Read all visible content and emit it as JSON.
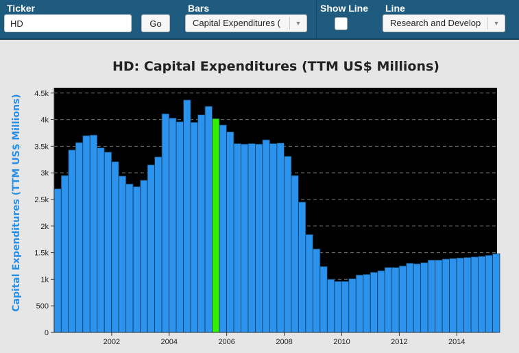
{
  "toolbar": {
    "ticker_label": "Ticker",
    "ticker_value": "HD",
    "go_label": "Go",
    "bars_label": "Bars",
    "bars_value": "Capital Expenditures (",
    "show_line_label": "Show Line",
    "show_line_checked": false,
    "line_label": "Line",
    "line_value": "Research and Develop"
  },
  "colors": {
    "toolbar_bg": "#1f5b7f",
    "bar": "#2b93ee",
    "highlight_bar": "#33ee00",
    "plot_bg": "#000000",
    "ylabel": "#2a8fe6"
  },
  "chart_data": {
    "type": "bar",
    "title": "HD: Capital Expenditures (TTM US$ Millions)",
    "ylabel": "Capital Expenditures (TTM US$ Millions)",
    "xlabel": "",
    "ylim": [
      0,
      4600
    ],
    "xlim": [
      2000.0,
      2015.4
    ],
    "grid": true,
    "y_ticks": [
      0,
      500,
      1000,
      1500,
      2000,
      2500,
      3000,
      3500,
      4000,
      4500
    ],
    "y_tick_labels": [
      "0",
      "500",
      "1k",
      "1.5k",
      "2k",
      "2.5k",
      "3k",
      "3.5k",
      "4k",
      "4.5k"
    ],
    "x_ticks": [
      2002,
      2004,
      2006,
      2008,
      2010,
      2012,
      2014
    ],
    "x_tick_labels": [
      "2002",
      "2004",
      "2006",
      "2008",
      "2010",
      "2012",
      "2014"
    ],
    "highlight_index": 22,
    "x": [
      2000.12,
      2000.37,
      2000.62,
      2000.87,
      2001.12,
      2001.37,
      2001.62,
      2001.87,
      2002.12,
      2002.37,
      2002.62,
      2002.87,
      2003.12,
      2003.37,
      2003.62,
      2003.87,
      2004.12,
      2004.37,
      2004.62,
      2004.87,
      2005.12,
      2005.37,
      2005.62,
      2005.87,
      2006.12,
      2006.37,
      2006.62,
      2006.87,
      2007.12,
      2007.37,
      2007.62,
      2007.87,
      2008.12,
      2008.37,
      2008.62,
      2008.87,
      2009.12,
      2009.37,
      2009.62,
      2009.87,
      2010.12,
      2010.37,
      2010.62,
      2010.87,
      2011.12,
      2011.37,
      2011.62,
      2011.87,
      2012.12,
      2012.37,
      2012.62,
      2012.87,
      2013.12,
      2013.37,
      2013.62,
      2013.87,
      2014.12,
      2014.37,
      2014.62,
      2014.87,
      2015.12,
      2015.37
    ],
    "values": [
      2700,
      2950,
      3430,
      3570,
      3700,
      3710,
      3470,
      3390,
      3210,
      2940,
      2790,
      2740,
      2860,
      3150,
      3300,
      4110,
      4030,
      3960,
      4370,
      3950,
      4090,
      4250,
      4020,
      3900,
      3770,
      3550,
      3540,
      3550,
      3540,
      3620,
      3550,
      3560,
      3310,
      2950,
      2450,
      1840,
      1570,
      1240,
      1000,
      960,
      960,
      1010,
      1080,
      1090,
      1130,
      1160,
      1220,
      1220,
      1250,
      1300,
      1290,
      1310,
      1360,
      1360,
      1380,
      1390,
      1400,
      1410,
      1420,
      1430,
      1450,
      1480
    ]
  }
}
